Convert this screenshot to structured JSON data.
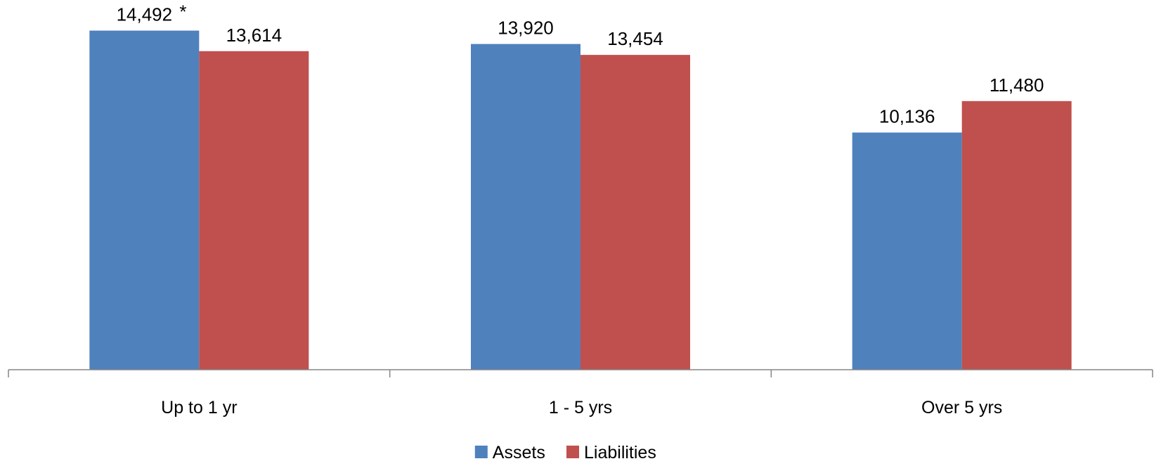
{
  "chart_data": {
    "type": "bar",
    "categories": [
      "Up to 1 yr",
      "1 - 5 yrs",
      "Over 5 yrs"
    ],
    "series": [
      {
        "name": "Assets",
        "color": "#4F81BD",
        "values": [
          14492,
          13920,
          10136
        ],
        "labels": [
          "14,492",
          "13,920",
          "10,136"
        ]
      },
      {
        "name": "Liabilities",
        "color": "#C0504D",
        "values": [
          13614,
          13454,
          11480
        ],
        "labels": [
          "13,614",
          "13,454",
          "11,480"
        ]
      }
    ],
    "annotations": [
      {
        "series": 0,
        "category": 0,
        "text": "*"
      }
    ],
    "ylim": [
      0,
      15500
    ],
    "grid": false,
    "legend_position": "bottom",
    "axis_color": "#868686"
  }
}
